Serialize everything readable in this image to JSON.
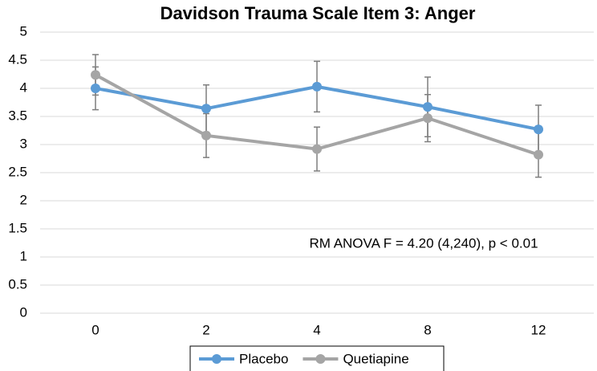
{
  "chart_data": {
    "type": "line",
    "title": "Davidson Trauma Scale Item 3: Anger",
    "categories": [
      "0",
      "2",
      "4",
      "8",
      "12"
    ],
    "series": [
      {
        "name": "Placebo",
        "color": "#5b9bd5",
        "values": [
          4.0,
          3.64,
          4.03,
          3.67,
          3.27
        ],
        "errors": [
          0.38,
          0.42,
          0.45,
          0.53,
          0.43
        ]
      },
      {
        "name": "Quetiapine",
        "color": "#a5a5a5",
        "values": [
          4.24,
          3.16,
          2.92,
          3.47,
          2.82
        ],
        "errors": [
          0.36,
          0.39,
          0.39,
          0.42,
          0.4
        ]
      }
    ],
    "annotation": "RM ANOVA F = 4.20 (4,240), p < 0.01",
    "ylim": [
      0,
      5
    ],
    "yticks": [
      0,
      0.5,
      1,
      1.5,
      2,
      2.5,
      3,
      3.5,
      4,
      4.5,
      5
    ],
    "grid": true,
    "legend": "bottom"
  }
}
